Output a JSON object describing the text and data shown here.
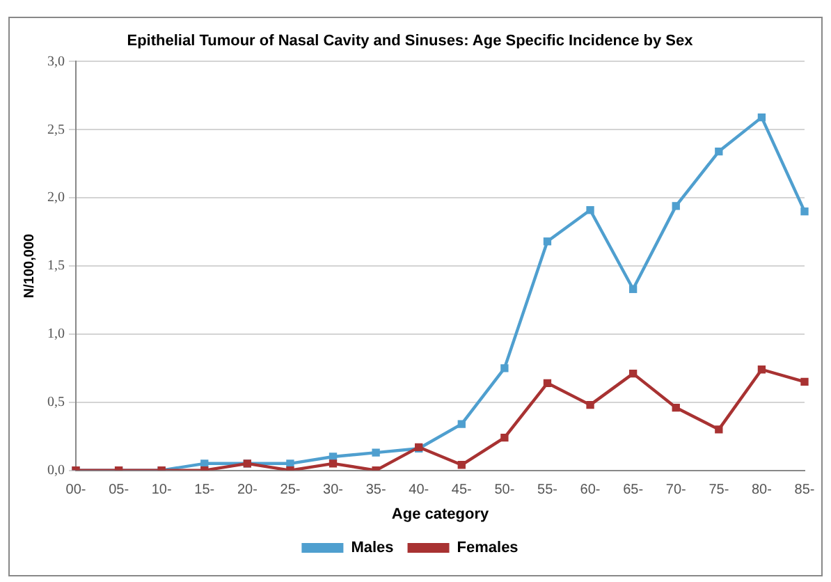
{
  "chart_data": {
    "type": "line",
    "title": "Epithelial Tumour of Nasal Cavity and Sinuses: Age Specific Incidence by Sex",
    "xlabel": "Age category",
    "ylabel": "N/100,000",
    "categories": [
      "00-",
      "05-",
      "10-",
      "15-",
      "20-",
      "25-",
      "30-",
      "35-",
      "40-",
      "45-",
      "50-",
      "55-",
      "60-",
      "65-",
      "70-",
      "75-",
      "80-",
      "85-"
    ],
    "series": [
      {
        "name": "Males",
        "color": "#4f9fcf",
        "values": [
          0,
          0,
          0,
          0.05,
          0.05,
          0.05,
          0.1,
          0.13,
          0.16,
          0.34,
          0.75,
          1.68,
          1.91,
          1.33,
          1.94,
          2.34,
          2.59,
          1.9
        ]
      },
      {
        "name": "Females",
        "color": "#a83232",
        "values": [
          0,
          0,
          0,
          0,
          0.05,
          0,
          0.05,
          0,
          0.17,
          0.04,
          0.24,
          0.64,
          0.48,
          0.71,
          0.46,
          0.3,
          0.74,
          0.65
        ]
      }
    ],
    "ylim": [
      0,
      3
    ],
    "yticks": [
      {
        "value": 0,
        "label": "0,0"
      },
      {
        "value": 0.5,
        "label": "0,5"
      },
      {
        "value": 1,
        "label": "1,0"
      },
      {
        "value": 1.5,
        "label": "1,5"
      },
      {
        "value": 2,
        "label": "2,0"
      },
      {
        "value": 2.5,
        "label": "2,5"
      },
      {
        "value": 3,
        "label": "3,0"
      }
    ],
    "grid": "y",
    "legend": "bottom",
    "marker": "square",
    "line_style": "solid"
  }
}
